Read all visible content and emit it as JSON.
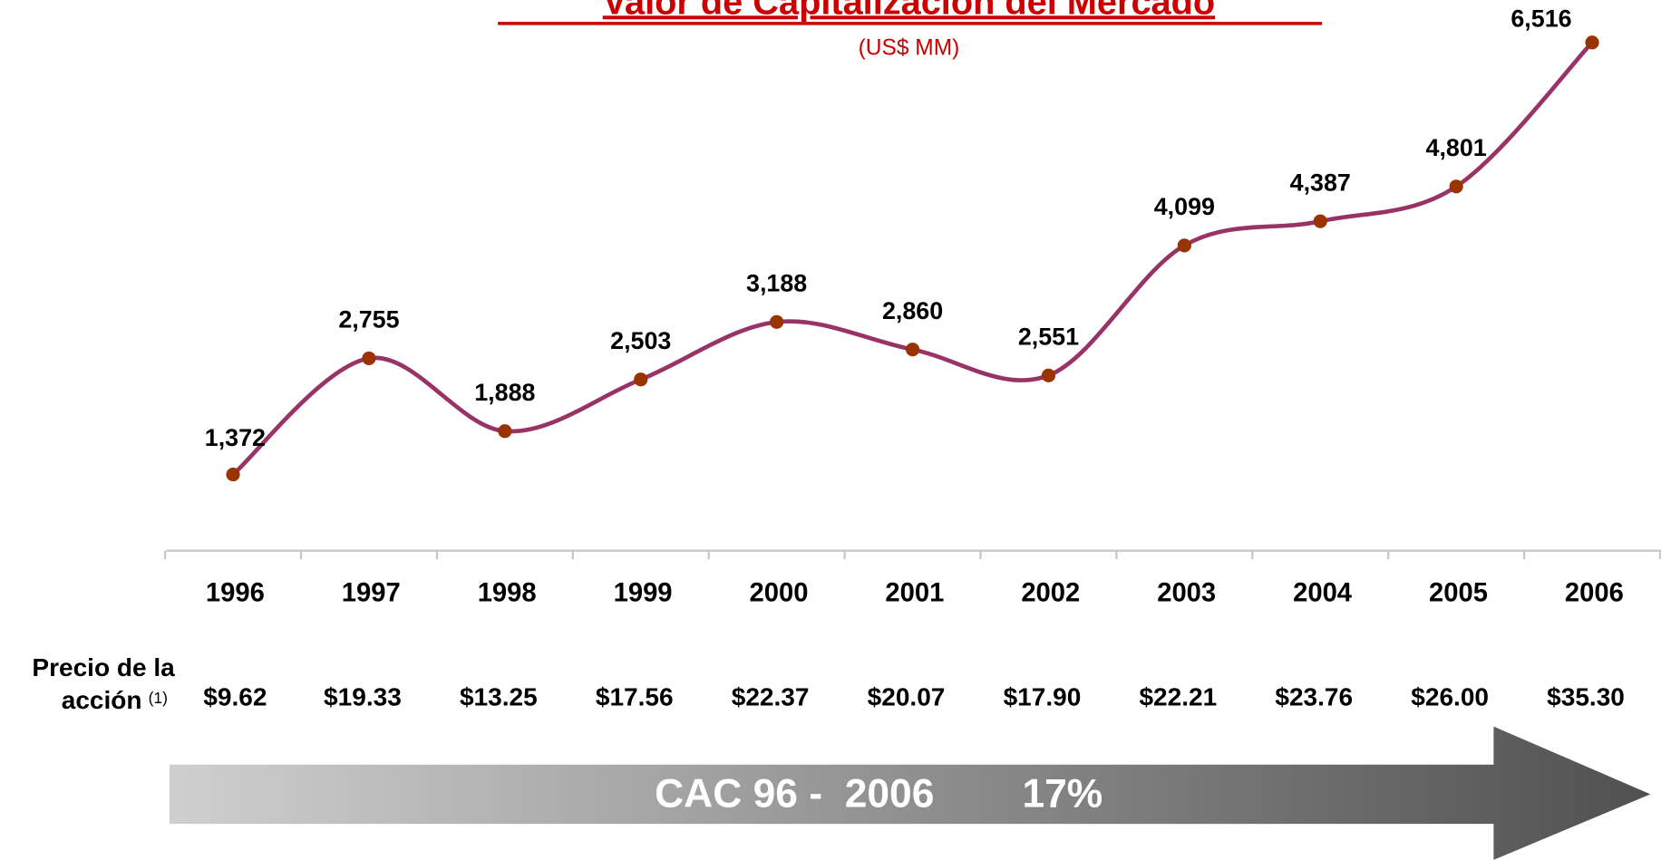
{
  "chart_data": {
    "type": "line",
    "title": "Valor de Capitalización del Mercado",
    "subtitle": "(US$ MM)",
    "categories": [
      "1996",
      "1997",
      "1998",
      "1999",
      "2000",
      "2001",
      "2002",
      "2003",
      "2004",
      "2005",
      "2006"
    ],
    "values": [
      1372,
      2755,
      1888,
      2503,
      3188,
      2860,
      2551,
      4099,
      4387,
      4801,
      6516
    ],
    "value_labels": [
      "1,372",
      "2,755",
      "1,888",
      "2,503",
      "3,188",
      "2,860",
      "2,551",
      "4,099",
      "4,387",
      "4,801",
      "6,516"
    ],
    "color": "#993366",
    "marker_color": "#993300"
  },
  "price_row": {
    "label_lines": [
      "Precio de la",
      "acción"
    ],
    "note": "(1)",
    "values": [
      "$9.62",
      "$19.33",
      "$13.25",
      "$17.56",
      "$22.37",
      "$20.07",
      "$17.90",
      "$22.21",
      "$23.76",
      "$26.00",
      "$35.30"
    ]
  },
  "arrow": {
    "period": "CAC 96 -  2006",
    "rate": "17%"
  }
}
